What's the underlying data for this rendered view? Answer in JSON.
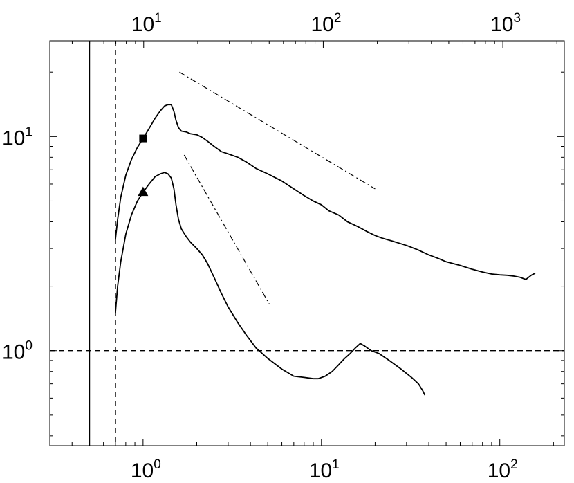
{
  "chart_data": {
    "type": "line",
    "title": "",
    "xlabel": "",
    "ylabel": "",
    "x_scale": "log",
    "y_scale": "log",
    "xlim": [
      0.3,
      230
    ],
    "ylim": [
      0.36,
      28
    ],
    "top_xlim": [
      3,
      2200
    ],
    "grid": false,
    "legend": "none",
    "colors": {
      "line": "#000000",
      "background": "#ffffff"
    },
    "x_ticks": [
      {
        "value": 1,
        "base": "10",
        "exp": "0"
      },
      {
        "value": 10,
        "base": "10",
        "exp": "1"
      },
      {
        "value": 100,
        "base": "10",
        "exp": "2"
      }
    ],
    "y_ticks": [
      {
        "value": 1,
        "base": "10",
        "exp": "0"
      },
      {
        "value": 10,
        "base": "10",
        "exp": "1"
      }
    ],
    "top_x_ticks": [
      {
        "value": 10,
        "base": "10",
        "exp": "1"
      },
      {
        "value": 100,
        "base": "10",
        "exp": "2"
      },
      {
        "value": 1000,
        "base": "10",
        "exp": "3"
      }
    ],
    "series": [
      {
        "style": "solid",
        "marker": "square",
        "marker_point": [
          1.0,
          9.8
        ],
        "x": [
          0.7,
          0.72,
          0.75,
          0.8,
          0.86,
          0.93,
          1.0,
          1.08,
          1.17,
          1.25,
          1.32,
          1.38,
          1.44,
          1.49,
          1.53,
          1.58,
          1.64,
          1.75,
          1.85,
          2.0,
          2.15,
          2.3,
          2.5,
          2.75,
          3.0,
          3.4,
          3.8,
          4.3,
          5.0,
          6.0,
          7.0,
          8.0,
          9.0,
          10.0,
          11.0,
          12.5,
          14.0,
          16.0,
          18.0,
          20.0,
          22.0,
          25.0,
          30.0,
          35.0,
          40.0,
          45.0,
          50.0,
          60.0,
          70.0,
          80.0,
          90.0,
          100.0,
          110.0,
          120.0,
          130.0,
          140.0,
          150.0,
          158.0
        ],
        "y": [
          3.3,
          4.1,
          5.2,
          6.6,
          7.8,
          8.9,
          9.8,
          10.9,
          12.2,
          13.2,
          13.9,
          14.1,
          14.1,
          13.1,
          11.9,
          11.0,
          10.6,
          10.5,
          10.3,
          10.2,
          9.9,
          9.5,
          9.0,
          8.5,
          8.3,
          8.0,
          7.6,
          7.1,
          6.7,
          6.2,
          5.7,
          5.3,
          5.0,
          4.8,
          4.5,
          4.3,
          4.0,
          3.8,
          3.6,
          3.45,
          3.35,
          3.25,
          3.1,
          2.95,
          2.8,
          2.7,
          2.6,
          2.5,
          2.4,
          2.33,
          2.28,
          2.26,
          2.25,
          2.23,
          2.2,
          2.15,
          2.25,
          2.3
        ]
      },
      {
        "style": "solid",
        "marker": "triangle",
        "marker_point": [
          1.0,
          5.5
        ],
        "x": [
          0.7,
          0.72,
          0.75,
          0.8,
          0.86,
          0.93,
          1.0,
          1.08,
          1.17,
          1.25,
          1.32,
          1.38,
          1.44,
          1.49,
          1.53,
          1.58,
          1.64,
          1.75,
          1.85,
          2.0,
          2.15,
          2.3,
          2.5,
          2.75,
          3.0,
          3.4,
          3.8,
          4.3,
          5.0,
          6.0,
          7.0,
          8.0,
          9.0,
          9.6,
          10.5,
          11.5,
          12.5,
          13.5,
          14.5,
          15.5,
          16.5,
          17.5,
          19.0,
          21.0,
          24.0,
          28.0,
          32.0,
          35.0,
          37.0,
          38.0
        ],
        "y": [
          1.5,
          2.0,
          2.6,
          3.5,
          4.3,
          5.0,
          5.5,
          6.0,
          6.5,
          6.7,
          6.8,
          6.7,
          6.4,
          5.7,
          4.8,
          4.1,
          3.7,
          3.4,
          3.2,
          3.0,
          2.8,
          2.55,
          2.2,
          1.85,
          1.6,
          1.35,
          1.18,
          1.03,
          0.92,
          0.82,
          0.76,
          0.75,
          0.74,
          0.74,
          0.76,
          0.8,
          0.86,
          0.92,
          0.97,
          1.03,
          1.08,
          1.05,
          1.0,
          0.97,
          0.9,
          0.82,
          0.75,
          0.7,
          0.65,
          0.62
        ]
      }
    ],
    "reference_lines": [
      {
        "style": "dashdot",
        "x": [
          1.6,
          20.0
        ],
        "y": [
          20.0,
          5.7
        ]
      },
      {
        "style": "dashdot",
        "x": [
          1.7,
          5.1
        ],
        "y": [
          8.2,
          1.65
        ]
      }
    ],
    "vertical_lines": [
      {
        "style": "solid",
        "x": 0.5
      },
      {
        "style": "dashed",
        "x": 0.7
      }
    ],
    "horizontal_lines": [
      {
        "style": "dashed",
        "y": 1.0
      }
    ]
  }
}
